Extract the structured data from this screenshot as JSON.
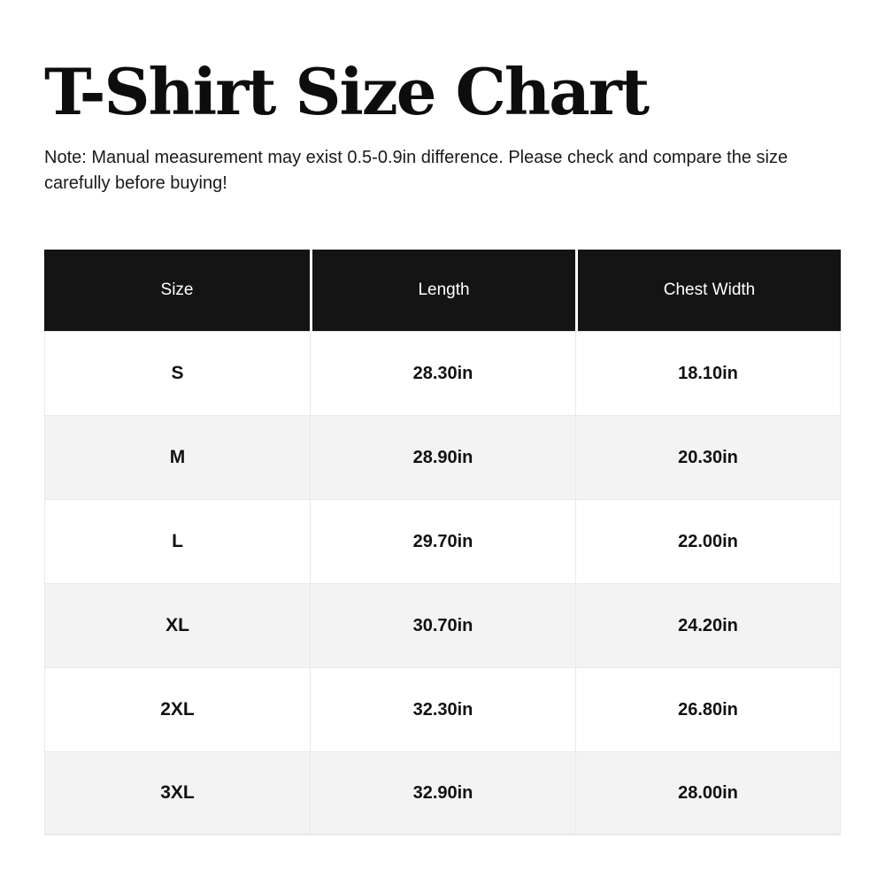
{
  "page": {
    "title": "T-Shirt Size Chart",
    "note": "Note: Manual measurement may exist 0.5-0.9in difference. Please check and compare the size carefully before buying!"
  },
  "chart_data": {
    "type": "table",
    "title": "T-Shirt Size Chart",
    "columns": [
      "Size",
      "Length",
      "Chest Width"
    ],
    "rows": [
      [
        "S",
        "28.30in",
        "18.10in"
      ],
      [
        "M",
        "28.90in",
        "20.30in"
      ],
      [
        "L",
        "29.70in",
        "22.00in"
      ],
      [
        "XL",
        "30.70in",
        "24.20in"
      ],
      [
        "2XL",
        "32.30in",
        "26.80in"
      ],
      [
        "3XL",
        "32.90in",
        "28.00in"
      ]
    ],
    "unit": "in",
    "layout": {
      "header_position": "top",
      "zebra_striping": true
    }
  },
  "colors": {
    "page_bg": "#ffffff",
    "header_bg": "#141414",
    "header_text": "#ffffff",
    "row_bg_odd": "#ffffff",
    "row_bg_even": "#f3f3f3",
    "grid_line": "#e9e9e9",
    "body_text": "#111111"
  }
}
